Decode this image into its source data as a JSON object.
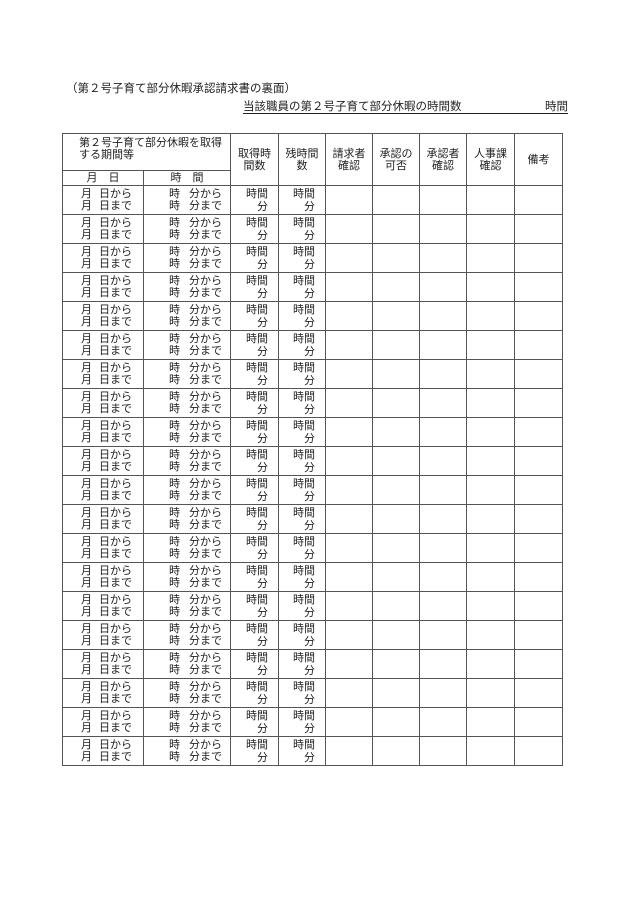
{
  "caption": "（第２号子育て部分休暇承認請求書の裏面）",
  "summary": {
    "label": "当該職員の第２号子育て部分休暇の時間数",
    "unit": "時間"
  },
  "headers": {
    "period": "第２号子育て部分休暇を取得する期間等",
    "date": "月　日",
    "time": "時　間",
    "hours_taken": "取得時間数",
    "remaining": "残時間数",
    "requester": "請求者確認",
    "approval": "承認の可否",
    "approver": "承認者確認",
    "hr": "人事課確認",
    "remarks": "備考"
  },
  "row_template": {
    "month": "月",
    "from_day": "日から",
    "to_day": "日まで",
    "hour": "時",
    "from_min": "分から",
    "to_min": "分まで",
    "hours": "時間",
    "minutes": "分"
  },
  "row_count": 20
}
